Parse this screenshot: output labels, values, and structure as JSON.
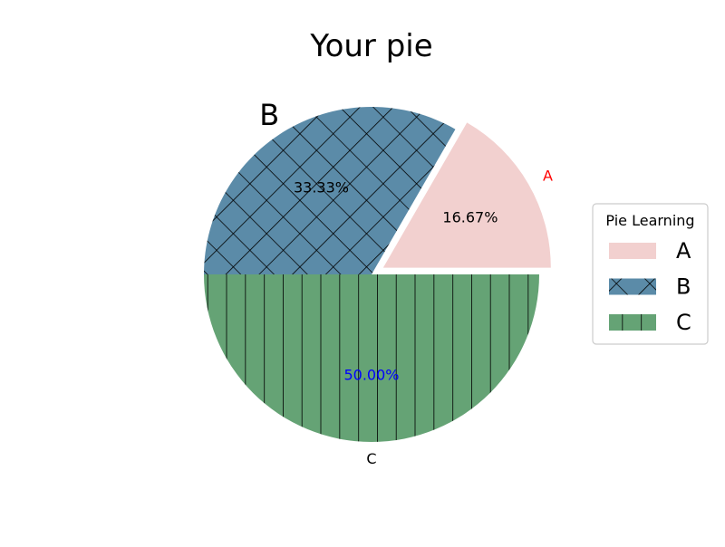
{
  "chart_data": {
    "type": "pie",
    "title": "Your pie",
    "categories": [
      "A",
      "B",
      "C"
    ],
    "values": [
      16.67,
      33.33,
      50.0
    ],
    "value_labels": [
      "16.67%",
      "33.33%",
      "50.00%"
    ],
    "explode": [
      0.08,
      0,
      0
    ],
    "colors": [
      "#f2d0cf",
      "#5b8ba8",
      "#65a375"
    ],
    "hatches": [
      "none",
      "crosshatch",
      "vertical"
    ],
    "label_colors": [
      "#ff0000",
      "#000000",
      "#000000"
    ],
    "value_label_colors": [
      "#000000",
      "#000000",
      "#0000ff"
    ],
    "legend": {
      "title": "Pie Learning",
      "entries": [
        "A",
        "B",
        "C"
      ],
      "placement": "right"
    }
  }
}
